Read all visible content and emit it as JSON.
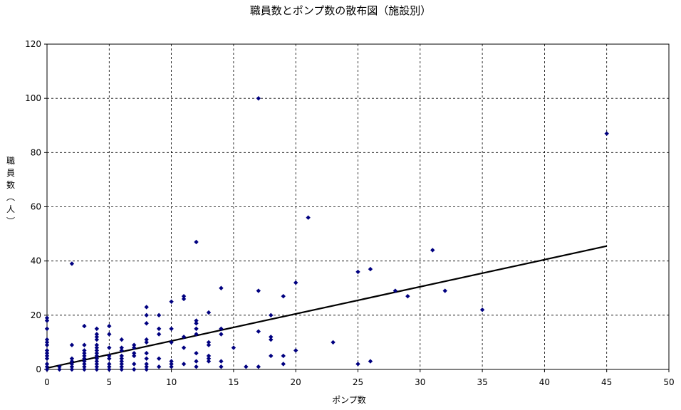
{
  "chart_data": {
    "type": "scatter",
    "title": "職員数とポンプ数の散布図（施設別）",
    "xlabel": "ポンプ数",
    "ylabel": "職員数（人）",
    "xlim": [
      0,
      50
    ],
    "ylim": [
      0,
      120
    ],
    "x_ticks": [
      "0",
      "5",
      "10",
      "15",
      "20",
      "25",
      "30",
      "35",
      "40",
      "45",
      "50"
    ],
    "y_ticks": [
      "0",
      "20",
      "40",
      "60",
      "80",
      "100",
      "120"
    ],
    "grid": true,
    "legend": "none",
    "marker_color": "#000080",
    "trendline": {
      "x": [
        0,
        45
      ],
      "y": [
        0.5,
        45.5
      ],
      "color": "#000000"
    },
    "points": [
      [
        0,
        0
      ],
      [
        0,
        1
      ],
      [
        0,
        2
      ],
      [
        0,
        4
      ],
      [
        0,
        5
      ],
      [
        0,
        6
      ],
      [
        0,
        7
      ],
      [
        0,
        9
      ],
      [
        0,
        10
      ],
      [
        0,
        11
      ],
      [
        0,
        15
      ],
      [
        0,
        18
      ],
      [
        0,
        19
      ],
      [
        1,
        0
      ],
      [
        1,
        1
      ],
      [
        2,
        0
      ],
      [
        2,
        1
      ],
      [
        2,
        2
      ],
      [
        2,
        3
      ],
      [
        2,
        4
      ],
      [
        2,
        9
      ],
      [
        2,
        39
      ],
      [
        3,
        0
      ],
      [
        3,
        1
      ],
      [
        3,
        2
      ],
      [
        3,
        3
      ],
      [
        3,
        4
      ],
      [
        3,
        5
      ],
      [
        3,
        6
      ],
      [
        3,
        7
      ],
      [
        3,
        9
      ],
      [
        3,
        16
      ],
      [
        4,
        0
      ],
      [
        4,
        1
      ],
      [
        4,
        2
      ],
      [
        4,
        3
      ],
      [
        4,
        4
      ],
      [
        4,
        5
      ],
      [
        4,
        6
      ],
      [
        4,
        7
      ],
      [
        4,
        8
      ],
      [
        4,
        9
      ],
      [
        4,
        11
      ],
      [
        4,
        12
      ],
      [
        4,
        13
      ],
      [
        4,
        15
      ],
      [
        5,
        0
      ],
      [
        5,
        1
      ],
      [
        5,
        2
      ],
      [
        5,
        4
      ],
      [
        5,
        5
      ],
      [
        5,
        8
      ],
      [
        5,
        13
      ],
      [
        5,
        16
      ],
      [
        6,
        0
      ],
      [
        6,
        1
      ],
      [
        6,
        2
      ],
      [
        6,
        3
      ],
      [
        6,
        4
      ],
      [
        6,
        5
      ],
      [
        6,
        7
      ],
      [
        6,
        8
      ],
      [
        6,
        11
      ],
      [
        7,
        0
      ],
      [
        7,
        2
      ],
      [
        7,
        5
      ],
      [
        7,
        6
      ],
      [
        7,
        8
      ],
      [
        7,
        9
      ],
      [
        8,
        0
      ],
      [
        8,
        1
      ],
      [
        8,
        2
      ],
      [
        8,
        4
      ],
      [
        8,
        6
      ],
      [
        8,
        10
      ],
      [
        8,
        11
      ],
      [
        8,
        17
      ],
      [
        8,
        20
      ],
      [
        8,
        23
      ],
      [
        9,
        1
      ],
      [
        9,
        4
      ],
      [
        9,
        13
      ],
      [
        9,
        15
      ],
      [
        9,
        20
      ],
      [
        10,
        1
      ],
      [
        10,
        2
      ],
      [
        10,
        3
      ],
      [
        10,
        10
      ],
      [
        10,
        15
      ],
      [
        10,
        25
      ],
      [
        11,
        2
      ],
      [
        11,
        8
      ],
      [
        11,
        12
      ],
      [
        11,
        26
      ],
      [
        11,
        27
      ],
      [
        12,
        1
      ],
      [
        12,
        3
      ],
      [
        12,
        6
      ],
      [
        12,
        13
      ],
      [
        12,
        15
      ],
      [
        12,
        17
      ],
      [
        12,
        18
      ],
      [
        12,
        47
      ],
      [
        13,
        3
      ],
      [
        13,
        4
      ],
      [
        13,
        5
      ],
      [
        13,
        9
      ],
      [
        13,
        10
      ],
      [
        13,
        21
      ],
      [
        14,
        1
      ],
      [
        14,
        3
      ],
      [
        14,
        13
      ],
      [
        14,
        15
      ],
      [
        14,
        30
      ],
      [
        15,
        8
      ],
      [
        16,
        1
      ],
      [
        17,
        1
      ],
      [
        17,
        14
      ],
      [
        17,
        29
      ],
      [
        17,
        100
      ],
      [
        18,
        5
      ],
      [
        18,
        11
      ],
      [
        18,
        12
      ],
      [
        18,
        20
      ],
      [
        19,
        2
      ],
      [
        19,
        5
      ],
      [
        19,
        27
      ],
      [
        20,
        7
      ],
      [
        20,
        32
      ],
      [
        21,
        56
      ],
      [
        23,
        10
      ],
      [
        25,
        2
      ],
      [
        25,
        36
      ],
      [
        26,
        3
      ],
      [
        26,
        37
      ],
      [
        28,
        29
      ],
      [
        29,
        27
      ],
      [
        31,
        44
      ],
      [
        32,
        29
      ],
      [
        35,
        22
      ],
      [
        45,
        87
      ]
    ]
  }
}
